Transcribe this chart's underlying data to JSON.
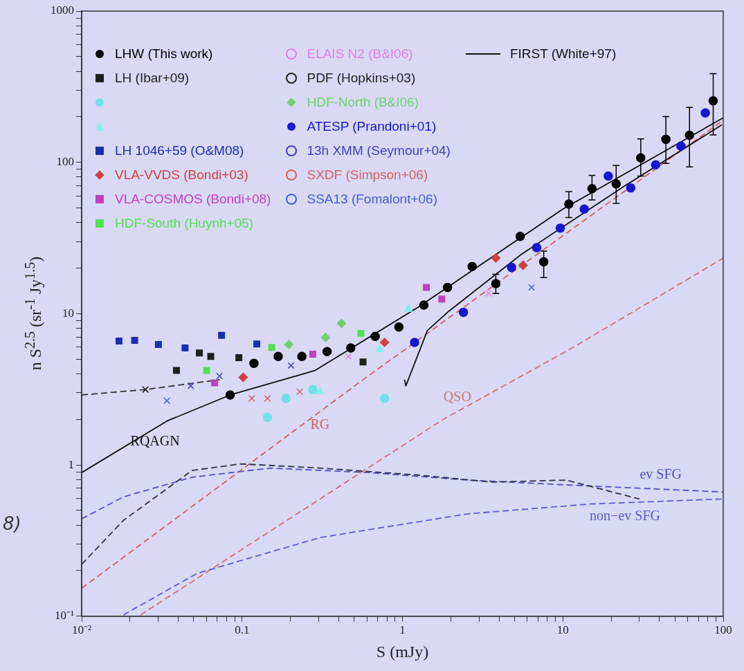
{
  "chart_data": {
    "type": "scatter",
    "xlabel": "S (mJy)",
    "ylabel": "n S$^{2.5}$ (sr$^{-1}$ Jy$^{1.5}$)",
    "log": "xy",
    "grid": false,
    "legend": "top left",
    "xlim": [
      0.01,
      100
    ],
    "ylim": [
      0.1,
      1000
    ],
    "xticks": [
      {
        "value": 0.01,
        "label": "10⁻²"
      },
      {
        "value": 0.02,
        "label": null
      },
      {
        "value": 0.03,
        "label": null
      },
      {
        "value": 0.04,
        "label": null
      },
      {
        "value": 0.05,
        "label": null
      },
      {
        "value": 0.06,
        "label": null
      },
      {
        "value": 0.07,
        "label": null
      },
      {
        "value": 0.08,
        "label": null
      },
      {
        "value": 0.09,
        "label": null
      },
      0.1,
      {
        "value": 0.2,
        "label": null
      },
      {
        "value": 0.3,
        "label": null
      },
      {
        "value": 0.4,
        "label": null
      },
      {
        "value": 0.5,
        "label": null
      },
      {
        "value": 0.6,
        "label": null
      },
      {
        "value": 0.7,
        "label": null
      },
      {
        "value": 0.8,
        "label": null
      },
      {
        "value": 0.9,
        "label": null
      },
      1,
      {
        "value": 2,
        "label": null
      },
      {
        "value": 3,
        "label": null
      },
      {
        "value": 4,
        "label": null
      },
      {
        "value": 5,
        "label": null
      },
      {
        "value": 6,
        "label": null
      },
      {
        "value": 7,
        "label": null
      },
      {
        "value": 8,
        "label": null
      },
      {
        "value": 9,
        "label": null
      },
      10,
      {
        "value": 20,
        "label": null
      },
      {
        "value": 30,
        "label": null
      },
      {
        "value": 40,
        "label": null
      },
      {
        "value": 50,
        "label": null
      },
      {
        "value": 60,
        "label": null
      },
      {
        "value": 70,
        "label": null
      },
      {
        "value": 80,
        "label": null
      },
      {
        "value": 90,
        "label": null
      },
      100
    ],
    "yticks": [
      {
        "value": 0.1,
        "label": "10⁻¹"
      },
      {
        "value": 0.2,
        "label": null
      },
      {
        "value": 0.3,
        "label": null
      },
      {
        "value": 0.4,
        "label": null
      },
      {
        "value": 0.5,
        "label": null
      },
      {
        "value": 0.6,
        "label": null
      },
      {
        "value": 0.7,
        "label": null
      },
      {
        "value": 0.8,
        "label": null
      },
      {
        "value": 0.9,
        "label": null
      },
      1,
      {
        "value": 2,
        "label": null
      },
      {
        "value": 3,
        "label": null
      },
      {
        "value": 4,
        "label": null
      },
      {
        "value": 5,
        "label": null
      },
      {
        "value": 6,
        "label": null
      },
      {
        "value": 7,
        "label": null
      },
      {
        "value": 8,
        "label": null
      },
      {
        "value": 9,
        "label": null
      },
      10,
      {
        "value": 20,
        "label": null
      },
      {
        "value": 30,
        "label": null
      },
      {
        "value": 40,
        "label": null
      },
      {
        "value": 50,
        "label": null
      },
      {
        "value": 60,
        "label": null
      },
      {
        "value": 70,
        "label": null
      },
      {
        "value": 80,
        "label": null
      },
      {
        "value": 90,
        "label": null
      },
      100,
      {
        "value": 200,
        "label": null
      },
      {
        "value": 300,
        "label": null
      },
      {
        "value": 400,
        "label": null
      },
      {
        "value": 500,
        "label": null
      },
      {
        "value": 600,
        "label": null
      },
      {
        "value": 700,
        "label": null
      },
      {
        "value": 800,
        "label": null
      },
      {
        "value": 900,
        "label": null
      },
      1000
    ],
    "series": [
      {
        "name": "LHW (This work)",
        "color": "#000000",
        "marker": "circle",
        "x": [
          0.0843,
          0.1186,
          0.168,
          0.236,
          0.339,
          0.476,
          0.676,
          0.95,
          1.36,
          1.91,
          2.72,
          3.82,
          5.42,
          7.6,
          10.9,
          15.2,
          21.5,
          30.6,
          43.9,
          61.6,
          86.6
        ],
        "values": [
          2.9,
          4.69,
          5.21,
          5.21,
          5.61,
          5.93,
          7.07,
          8.16,
          11.4,
          14.9,
          20.5,
          15.8,
          32.4,
          22.0,
          53.0,
          67.0,
          72.1,
          107,
          142,
          151,
          255
        ],
        "errors": [
          null,
          null,
          null,
          null,
          null,
          null,
          null,
          null,
          null,
          null,
          null,
          [
            13.6,
            18.2
          ],
          null,
          [
            17.3,
            25.9
          ],
          [
            43.2,
            64.1
          ],
          [
            56.5,
            82
          ],
          [
            53.6,
            95.3
          ],
          [
            81.2,
            143
          ],
          [
            98.4,
            201
          ],
          [
            93.3,
            231
          ],
          [
            152,
            386
          ]
        ]
      },
      {
        "name": "LH (Ibar+09)",
        "color": "#202020",
        "marker": "square",
        "x": [
          0.039,
          0.0542,
          0.0638,
          0.0955,
          0.568
        ],
        "values": [
          4.21,
          5.5,
          5.21,
          5.12,
          4.79
        ]
      },
      {
        "color": "#70e0e8",
        "marker": "circle",
        "x": [
          0.144,
          0.188,
          0.276,
          0.773
        ],
        "values": [
          2.06,
          2.75,
          3.15,
          2.75
        ]
      },
      {
        "color": "#80f0f0",
        "marker": "triangle",
        "x": [
          0.306,
          0.72,
          1.09
        ],
        "values": [
          3.05,
          5.8,
          10.7
        ]
      },
      {
        "name": "LH 1046+59 (O&M08)",
        "color": "#1a2fb0",
        "marker": "square",
        "x": [
          0.0171,
          0.0214,
          0.0301,
          0.0441,
          0.0745,
          0.1236
        ],
        "values": [
          6.59,
          6.66,
          6.25,
          5.93,
          7.18,
          6.31
        ]
      },
      {
        "name": "VLA-VVDS (Bondi+03)",
        "color": "#d04040",
        "marker": "diamond",
        "x": [
          0.1016,
          0.773,
          3.82,
          5.65
        ],
        "values": [
          3.79,
          6.45,
          23.3,
          20.9
        ]
      },
      {
        "name": "VLA-COSMOS (Bondi+08)",
        "color": "#c040c0",
        "marker": "square",
        "x": [
          0.0673,
          0.276,
          1.41,
          1.76
        ],
        "values": [
          3.49,
          5.39,
          14.9,
          12.5
        ]
      },
      {
        "name": "HDF-South (Huynh+05)",
        "color": "#50e050",
        "marker": "square",
        "x": [
          0.0601,
          0.153,
          0.55
        ],
        "values": [
          4.21,
          5.98,
          7.41
        ]
      },
      {
        "name": "ELAIS N2 (B&I06)",
        "color": "#e080e0",
        "marker": "cross",
        "x": [
          0.461,
          1.36,
          3.44
        ],
        "values": [
          5.21,
          null,
          13.6
        ]
      },
      {
        "name": "PDF (Hopkins+03)",
        "color": "#202020",
        "marker": "cross",
        "x": [
          0.025
        ],
        "values": [
          3.15
        ]
      },
      {
        "name": "HDF-North (B&I06)",
        "color": "#70d070",
        "marker": "diamond",
        "x": [
          0.196,
          0.332,
          0.417
        ],
        "values": [
          6.25,
          6.96,
          8.61
        ]
      },
      {
        "name": "ATESP (Prandoni+01)",
        "color": "#1515d0",
        "marker": "circle",
        "x": [
          1.19,
          2.4,
          4.79,
          6.87,
          9.64,
          13.6,
          19.2,
          26.5,
          37.9,
          54.5,
          77.3
        ],
        "values": [
          6.45,
          10.2,
          20.2,
          27.3,
          36.8,
          49.1,
          81.2,
          67.7,
          96.3,
          128,
          212
        ]
      },
      {
        "name": "13h XMM (Seymour+04)",
        "color": "#4040c0",
        "marker": "cross",
        "x": [
          0.0479,
          0.0723,
          0.202
        ],
        "values": [
          3.33,
          3.87,
          4.54
        ]
      },
      {
        "name": "SXDF (Simpson+06)",
        "color": "#d06060",
        "marker": "cross",
        "x": [
          0.115,
          0.144,
          0.229
        ],
        "values": [
          2.75,
          2.75,
          3.05
        ]
      },
      {
        "name": "SSA13 (Fomalont+06)",
        "color": "#4060d0",
        "marker": "cross",
        "x": [
          0.034,
          6.39
        ],
        "values": [
          2.66,
          14.9
        ]
      },
      {
        "name": "FIRST (White+97)",
        "type": "line",
        "color": "#101010",
        "marker": "none",
        "line_style": "solid",
        "x": [
          1.03,
          1.05,
          1.43,
          1.95,
          5.47,
          23.2,
          98
        ],
        "values": [
          3.66,
          3.33,
          7.73,
          10.4,
          24.5,
          67.7,
          177
        ]
      },
      {
        "type": "line",
        "color": "#303030",
        "marker": "none",
        "line_style": "dashed",
        "x": [
          0.01,
          0.025,
          0.0723
        ],
        "values": [
          2.9,
          3.15,
          3.66
        ]
      },
      {
        "type": "line",
        "color": "#101010",
        "marker": "none",
        "line_style": "solid",
        "x": [
          0.01,
          0.034,
          0.0843,
          0.285,
          1.25,
          10,
          100
        ],
        "values": [
          0.89,
          1.95,
          2.9,
          4.21,
          11.0,
          49.1,
          197
        ]
      },
      {
        "type": "line",
        "color": "#303040",
        "marker": "none",
        "line_style": "dashed",
        "x": [
          0.01,
          0.0182,
          0.0489,
          0.0984,
          0.306,
          1.25,
          3.62,
          10.5,
          30.0
        ],
        "values": [
          0.22,
          0.43,
          0.92,
          1.016,
          0.953,
          0.857,
          0.77,
          0.794,
          0.596
        ]
      },
      {
        "type": "line",
        "color": "#5050c0",
        "marker": "none",
        "line_style": "dashed",
        "x": [
          0.01,
          0.0182,
          0.0489,
          0.15,
          0.617,
          2.55,
          10.5,
          100
        ],
        "values": [
          0.44,
          0.615,
          0.83,
          0.953,
          0.89,
          0.794,
          0.738,
          0.662
        ]
      },
      {
        "type": "line",
        "color": "#5a5ad0",
        "marker": "none",
        "line_style": "dashed",
        "x": [
          0.0182,
          0.0525,
          0.306,
          2.55,
          14.9,
          100
        ],
        "values": [
          0.102,
          0.192,
          0.331,
          0.475,
          0.552,
          0.596
        ]
      },
      {
        "type": "line",
        "color": "#d06060",
        "marker": "none",
        "line_style": "dashed",
        "x": [
          0.01,
          0.568,
          100
        ],
        "values": [
          0.153,
          3.66,
          190
        ]
      },
      {
        "type": "line",
        "color": "#d07070",
        "marker": "none",
        "line_style": "dashed",
        "x": [
          0.0233,
          1.78,
          11.6,
          100
        ],
        "values": [
          0.102,
          1.99,
          5.98,
          23.3
        ]
      }
    ],
    "annotations": [
      {
        "text": "RQAGN",
        "x": 0.0287,
        "y": 1.75
      },
      {
        "text": "RG",
        "x": 0.306,
        "y": 2.25
      },
      {
        "text": "QSO",
        "x": 2.2,
        "y": 2.25
      },
      {
        "text": "ev SFG",
        "x": 40.8,
        "y": 0.691
      },
      {
        "text": "non−ev SFG",
        "x": 24.4,
        "y": 0.563
      },
      "8)"
    ]
  }
}
